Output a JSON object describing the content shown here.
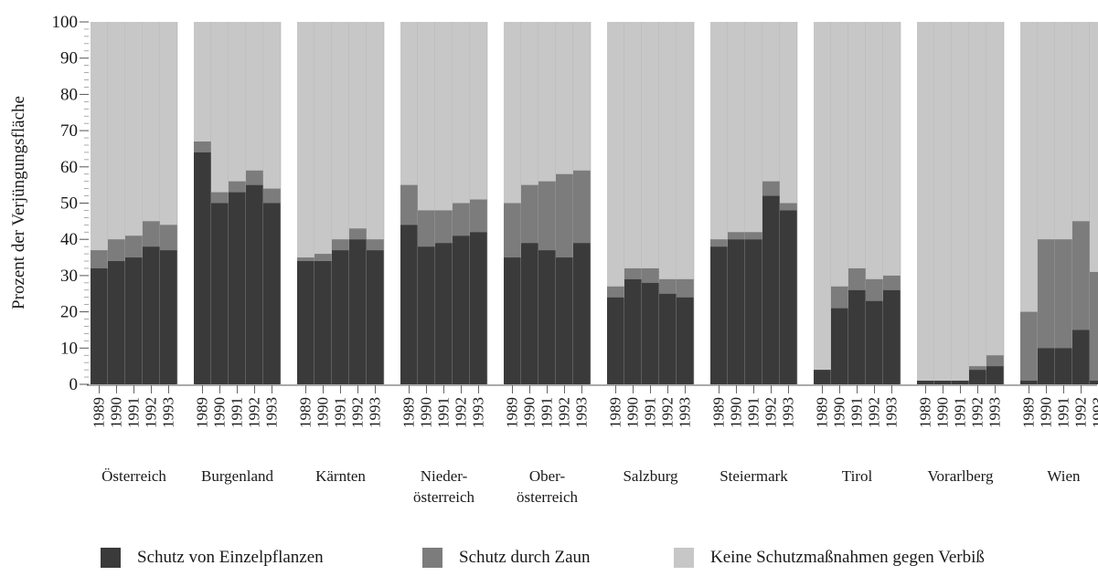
{
  "chart_data": {
    "type": "bar",
    "stacked": true,
    "ylabel": "Prozent der Verjüngungsfläche",
    "ylim": [
      0,
      100
    ],
    "yticks": [
      0,
      10,
      20,
      30,
      40,
      50,
      60,
      70,
      80,
      90,
      100
    ],
    "years": [
      "1989",
      "1990",
      "1991",
      "1992",
      "1993"
    ],
    "groups": [
      {
        "name": "Österreich",
        "name_lines": [
          "Österreich"
        ],
        "einzel": [
          32,
          34,
          35,
          38,
          37
        ],
        "zaun": [
          5,
          6,
          6,
          7,
          7
        ]
      },
      {
        "name": "Burgenland",
        "name_lines": [
          "Burgenland"
        ],
        "einzel": [
          64,
          50,
          53,
          55,
          50
        ],
        "zaun": [
          3,
          3,
          3,
          4,
          4
        ]
      },
      {
        "name": "Kärnten",
        "name_lines": [
          "Kärnten"
        ],
        "einzel": [
          34,
          34,
          37,
          40,
          37
        ],
        "zaun": [
          1,
          2,
          3,
          3,
          3
        ]
      },
      {
        "name": "Nieder-österreich",
        "name_lines": [
          "Nieder-",
          "österreich"
        ],
        "einzel": [
          44,
          38,
          39,
          41,
          42
        ],
        "zaun": [
          11,
          10,
          9,
          9,
          9
        ]
      },
      {
        "name": "Ober-österreich",
        "name_lines": [
          "Ober-",
          "österreich"
        ],
        "einzel": [
          35,
          39,
          37,
          35,
          39
        ],
        "zaun": [
          15,
          16,
          19,
          23,
          20
        ]
      },
      {
        "name": "Salzburg",
        "name_lines": [
          "Salzburg"
        ],
        "einzel": [
          24,
          29,
          28,
          25,
          24
        ],
        "zaun": [
          3,
          3,
          4,
          4,
          5
        ]
      },
      {
        "name": "Steiermark",
        "name_lines": [
          "Steiermark"
        ],
        "einzel": [
          38,
          40,
          40,
          52,
          48
        ],
        "zaun": [
          2,
          2,
          2,
          4,
          2
        ]
      },
      {
        "name": "Tirol",
        "name_lines": [
          "Tirol"
        ],
        "einzel": [
          4,
          21,
          26,
          23,
          26
        ],
        "zaun": [
          0,
          6,
          6,
          6,
          4
        ]
      },
      {
        "name": "Vorarlberg",
        "name_lines": [
          "Vorarlberg"
        ],
        "einzel": [
          1,
          1,
          1,
          4,
          5
        ],
        "zaun": [
          0,
          0,
          0,
          1,
          3
        ]
      },
      {
        "name": "Wien",
        "name_lines": [
          "Wien"
        ],
        "einzel": [
          1,
          10,
          10,
          15,
          1
        ],
        "zaun": [
          19,
          30,
          30,
          30,
          30
        ]
      }
    ],
    "legend": [
      {
        "key": "einzel",
        "label": "Schutz von Einzelpflanzen",
        "color": "#3a3a3a"
      },
      {
        "key": "zaun",
        "label": "Schutz durch Zaun",
        "color": "#7c7c7c"
      },
      {
        "key": "keine",
        "label": "Keine Schutzmaßnahmen gegen Verbiß",
        "color": "#c7c7c7"
      }
    ],
    "grid": false
  }
}
